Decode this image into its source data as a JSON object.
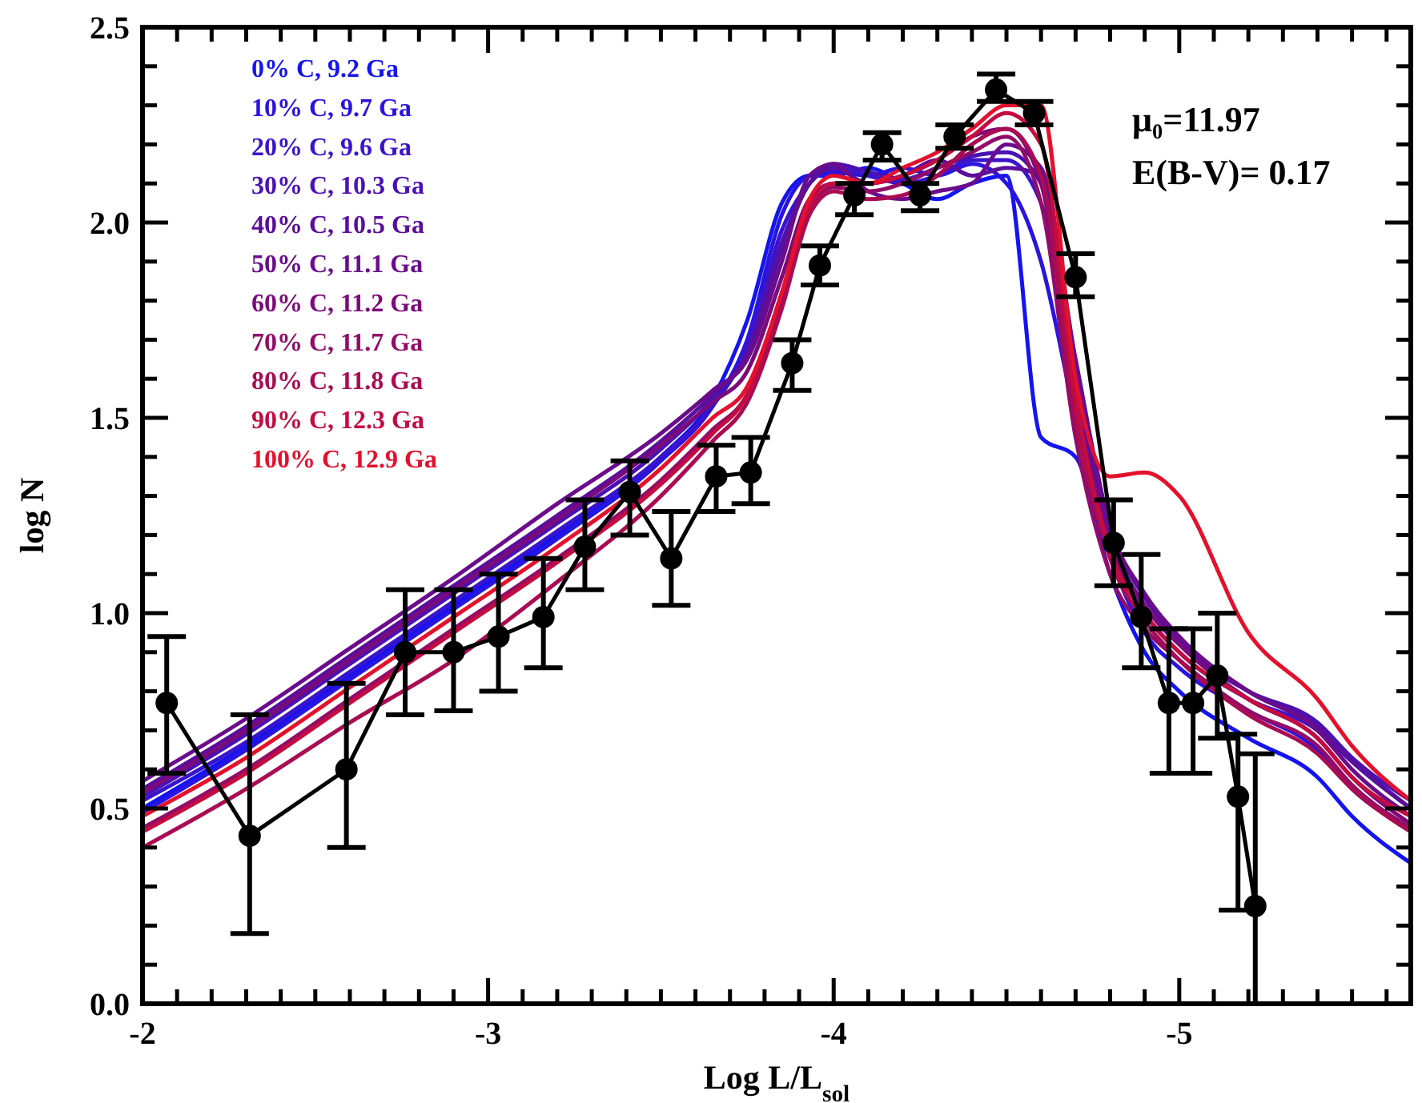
{
  "chart_data": {
    "type": "line",
    "xlabel": "Log L/L$_{sol}$",
    "ylabel": "log N",
    "xlim": [
      -2,
      -5.67
    ],
    "ylim": [
      0,
      2.5
    ],
    "xticks": [
      {
        "value": -2,
        "label": "-2"
      },
      {
        "value": -2.1,
        "label": null
      },
      {
        "value": -2.2,
        "label": null
      },
      {
        "value": -2.3,
        "label": null
      },
      {
        "value": -2.4,
        "label": null
      },
      {
        "value": -2.5,
        "label": null
      },
      {
        "value": -2.6,
        "label": null
      },
      {
        "value": -2.7,
        "label": null
      },
      {
        "value": -2.8,
        "label": null
      },
      {
        "value": -2.9,
        "label": null
      },
      {
        "value": -3,
        "label": "-3"
      },
      {
        "value": -3.1,
        "label": null
      },
      {
        "value": -3.2,
        "label": null
      },
      {
        "value": -3.3,
        "label": null
      },
      {
        "value": -3.4,
        "label": null
      },
      {
        "value": -3.5,
        "label": null
      },
      {
        "value": -3.6,
        "label": null
      },
      {
        "value": -3.7,
        "label": null
      },
      {
        "value": -3.8,
        "label": null
      },
      {
        "value": -3.9,
        "label": null
      },
      {
        "value": -4,
        "label": "-4"
      },
      {
        "value": -4.1,
        "label": null
      },
      {
        "value": -4.2,
        "label": null
      },
      {
        "value": -4.3,
        "label": null
      },
      {
        "value": -4.4,
        "label": null
      },
      {
        "value": -4.5,
        "label": null
      },
      {
        "value": -4.6,
        "label": null
      },
      {
        "value": -4.7,
        "label": null
      },
      {
        "value": -4.8,
        "label": null
      },
      {
        "value": -4.9,
        "label": null
      },
      {
        "value": -5,
        "label": "-5"
      },
      {
        "value": -5.1,
        "label": null
      },
      {
        "value": -5.2,
        "label": null
      },
      {
        "value": -5.3,
        "label": null
      },
      {
        "value": -5.4,
        "label": null
      },
      {
        "value": -5.5,
        "label": null
      },
      {
        "value": -5.6,
        "label": null
      }
    ],
    "yticks": [
      {
        "value": 0,
        "label": "0.0"
      },
      {
        "value": 0.1,
        "label": null
      },
      {
        "value": 0.2,
        "label": null
      },
      {
        "value": 0.3,
        "label": null
      },
      {
        "value": 0.4,
        "label": null
      },
      {
        "value": 0.5,
        "label": "0.5"
      },
      {
        "value": 0.6,
        "label": null
      },
      {
        "value": 0.7,
        "label": null
      },
      {
        "value": 0.8,
        "label": null
      },
      {
        "value": 0.9,
        "label": null
      },
      {
        "value": 1,
        "label": "1.0"
      },
      {
        "value": 1.1,
        "label": null
      },
      {
        "value": 1.2,
        "label": null
      },
      {
        "value": 1.3,
        "label": null
      },
      {
        "value": 1.4,
        "label": null
      },
      {
        "value": 1.5,
        "label": "1.5"
      },
      {
        "value": 1.6,
        "label": null
      },
      {
        "value": 1.7,
        "label": null
      },
      {
        "value": 1.8,
        "label": null
      },
      {
        "value": 1.9,
        "label": null
      },
      {
        "value": 2,
        "label": "2.0"
      },
      {
        "value": 2.1,
        "label": null
      },
      {
        "value": 2.2,
        "label": null
      },
      {
        "value": 2.3,
        "label": null
      },
      {
        "value": 2.4,
        "label": null
      },
      {
        "value": 2.5,
        "label": "2.5"
      }
    ],
    "grid": false,
    "legend": "top left",
    "annotations": [
      "μ₀=11.97",
      "E(B-V)= 0.17"
    ],
    "x": [
      -2,
      -2.3,
      -2.6,
      -2.9,
      -3.2,
      -3.5,
      -3.65,
      -3.75,
      -3.85,
      -3.93,
      -4.0,
      -4.1,
      -4.2,
      -4.3,
      -4.4,
      -4.5,
      -4.6,
      -4.7,
      -4.8,
      -4.9,
      -5.0,
      -5.2,
      -5.4,
      -5.5,
      -5.67
    ],
    "series": [
      {
        "name": "0% C, 9.2 Ga",
        "color": "#1414f0",
        "marker": "none",
        "values": [
          0.5,
          0.66,
          0.84,
          1.02,
          1.2,
          1.4,
          1.55,
          1.75,
          2.05,
          2.12,
          2.12,
          2.14,
          2.1,
          2.06,
          2.1,
          2.12,
          1.45,
          1.4,
          1.1,
          0.9,
          0.8,
          0.68,
          0.58,
          0.48,
          0.36
        ]
      },
      {
        "name": "10% C, 9.7 Ga",
        "color": "#2a14e0",
        "marker": "none",
        "values": [
          0.49,
          0.65,
          0.83,
          1.01,
          1.19,
          1.39,
          1.53,
          1.7,
          2.02,
          2.12,
          2.13,
          2.12,
          2.14,
          2.12,
          2.15,
          2.1,
          1.9,
          1.5,
          1.15,
          0.95,
          0.86,
          0.75,
          0.65,
          0.55,
          0.45
        ]
      },
      {
        "name": "20% C, 9.6 Ga",
        "color": "#3a14cc",
        "marker": "none",
        "values": [
          0.52,
          0.67,
          0.85,
          1.03,
          1.21,
          1.4,
          1.53,
          1.68,
          1.98,
          2.1,
          2.14,
          2.12,
          2.1,
          2.12,
          2.16,
          2.16,
          2.05,
          1.6,
          1.18,
          1.0,
          0.9,
          0.78,
          0.7,
          0.62,
          0.5
        ]
      },
      {
        "name": "30% C, 10.3 Ga",
        "color": "#4a12b4",
        "marker": "none",
        "values": [
          0.53,
          0.69,
          0.87,
          1.05,
          1.23,
          1.42,
          1.55,
          1.67,
          1.95,
          2.1,
          2.15,
          2.13,
          2.11,
          2.14,
          2.17,
          2.18,
          2.1,
          1.62,
          1.2,
          1.02,
          0.92,
          0.8,
          0.72,
          0.63,
          0.52
        ]
      },
      {
        "name": "40% C, 10.5 Ga",
        "color": "#5a0e9c",
        "marker": "none",
        "values": [
          0.55,
          0.71,
          0.89,
          1.07,
          1.25,
          1.44,
          1.56,
          1.66,
          1.93,
          2.1,
          2.14,
          2.1,
          2.12,
          2.16,
          2.12,
          2.14,
          2.12,
          1.65,
          1.22,
          1.04,
          0.93,
          0.8,
          0.71,
          0.62,
          0.5
        ]
      },
      {
        "name": "50% C, 11.1 Ga",
        "color": "#6a0c8c",
        "marker": "none",
        "values": [
          0.57,
          0.73,
          0.91,
          1.09,
          1.28,
          1.46,
          1.57,
          1.65,
          1.9,
          2.12,
          2.15,
          2.08,
          2.06,
          2.08,
          2.1,
          2.2,
          2.14,
          1.62,
          1.22,
          1.05,
          0.94,
          0.8,
          0.7,
          0.6,
          0.48
        ]
      },
      {
        "name": "60% C, 11.2 Ga",
        "color": "#7c0a7a",
        "marker": "none",
        "values": [
          0.54,
          0.7,
          0.88,
          1.06,
          1.24,
          1.43,
          1.54,
          1.62,
          1.86,
          2.06,
          2.1,
          2.1,
          2.12,
          2.16,
          2.22,
          2.24,
          2.1,
          1.55,
          1.18,
          1.02,
          0.92,
          0.78,
          0.68,
          0.58,
          0.46
        ]
      },
      {
        "name": "70% C, 11.7 Ga",
        "color": "#920c68",
        "marker": "none",
        "values": [
          0.45,
          0.6,
          0.78,
          0.96,
          1.14,
          1.34,
          1.47,
          1.56,
          1.8,
          2.04,
          2.09,
          2.08,
          2.1,
          2.14,
          2.18,
          2.22,
          2.05,
          1.45,
          1.1,
          0.96,
          0.88,
          0.75,
          0.66,
          0.56,
          0.45
        ]
      },
      {
        "name": "80% C, 11.8 Ga",
        "color": "#aa0c52",
        "marker": "none",
        "values": [
          0.4,
          0.55,
          0.72,
          0.88,
          1.08,
          1.3,
          1.44,
          1.54,
          1.78,
          2.02,
          2.08,
          2.06,
          2.07,
          2.12,
          2.2,
          2.24,
          2.12,
          1.5,
          1.14,
          0.98,
          0.88,
          0.74,
          0.64,
          0.55,
          0.44
        ]
      },
      {
        "name": "90% C, 12.3 Ga",
        "color": "#c40c40",
        "marker": "none",
        "values": [
          0.44,
          0.59,
          0.77,
          0.95,
          1.13,
          1.33,
          1.46,
          1.56,
          1.82,
          2.04,
          2.1,
          2.1,
          2.12,
          2.16,
          2.22,
          2.28,
          2.2,
          1.55,
          1.16,
          1.0,
          0.9,
          0.78,
          0.68,
          0.58,
          0.48
        ]
      },
      {
        "name": "100% C, 12.9 Ga",
        "color": "#e4102c",
        "marker": "none",
        "values": [
          0.48,
          0.63,
          0.81,
          0.99,
          1.17,
          1.37,
          1.5,
          1.58,
          1.82,
          2.06,
          2.12,
          2.1,
          2.14,
          2.18,
          2.24,
          2.3,
          2.3,
          1.6,
          1.35,
          1.36,
          1.3,
          0.95,
          0.78,
          0.66,
          0.52
        ]
      },
      {
        "color": "#000000",
        "marker": "circle",
        "x": [
          -2.07,
          -2.31,
          -2.59,
          -2.76,
          -2.9,
          -3.03,
          -3.16,
          -3.28,
          -3.41,
          -3.53,
          -3.66,
          -3.76,
          -3.88,
          -3.96,
          -4.06,
          -4.14,
          -4.25,
          -4.35,
          -4.47,
          -4.58,
          -4.7,
          -4.81,
          -4.89,
          -4.97,
          -5.04,
          -5.11,
          -5.17,
          -5.22
        ],
        "values": [
          0.77,
          0.43,
          0.6,
          0.9,
          0.9,
          0.94,
          0.99,
          1.17,
          1.31,
          1.14,
          1.35,
          1.36,
          1.64,
          1.89,
          2.07,
          2.2,
          2.07,
          2.22,
          2.34,
          2.28,
          1.86,
          1.18,
          0.99,
          0.77,
          0.77,
          0.84,
          0.53,
          0.25
        ],
        "errors": [
          [
            0.59,
            0.94
          ],
          [
            0.18,
            0.74
          ],
          [
            0.4,
            0.82
          ],
          [
            0.74,
            1.06
          ],
          [
            0.75,
            1.06
          ],
          [
            0.8,
            1.1
          ],
          [
            0.86,
            1.14
          ],
          [
            1.06,
            1.29
          ],
          [
            1.2,
            1.39
          ],
          [
            1.02,
            1.26
          ],
          [
            1.26,
            1.43
          ],
          [
            1.28,
            1.45
          ],
          [
            1.57,
            1.7
          ],
          [
            1.84,
            1.94
          ],
          [
            2.02,
            2.1
          ],
          [
            2.16,
            2.23
          ],
          [
            2.03,
            2.1
          ],
          [
            2.19,
            2.25
          ],
          [
            2.31,
            2.38
          ],
          [
            2.25,
            2.31
          ],
          [
            1.81,
            1.92
          ],
          [
            1.07,
            1.29
          ],
          [
            0.86,
            1.15
          ],
          [
            0.59,
            0.96
          ],
          [
            0.59,
            0.96
          ],
          [
            0.68,
            1.0
          ],
          [
            0.24,
            0.69
          ],
          [
            0,
            0.64
          ]
        ]
      }
    ]
  }
}
